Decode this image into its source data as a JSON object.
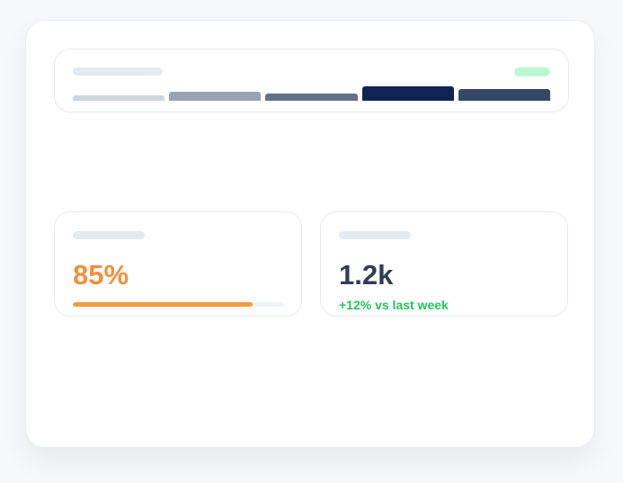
{
  "dashboard": {
    "chart_card": {
      "status_color": "#bbf7d0"
    },
    "stats": [
      {
        "value": "85%",
        "value_color": "#f28f3b",
        "progress": 0.85,
        "progress_color": "#f59a3f"
      },
      {
        "value": "1.2k",
        "value_color": "#2f3d55",
        "change": "+12% vs last week",
        "change_color": "#22c55e"
      }
    ]
  },
  "chart_data": {
    "type": "bar",
    "categories": [
      "",
      "",
      "",
      "",
      ""
    ],
    "values": [
      5,
      9,
      7,
      14,
      11
    ],
    "ylim": [
      0,
      14
    ],
    "colors": [
      "#cfd5de",
      "#9aa3b2",
      "#64708c",
      "#0f2453",
      "#344766"
    ],
    "grid": false,
    "legend": "none"
  }
}
